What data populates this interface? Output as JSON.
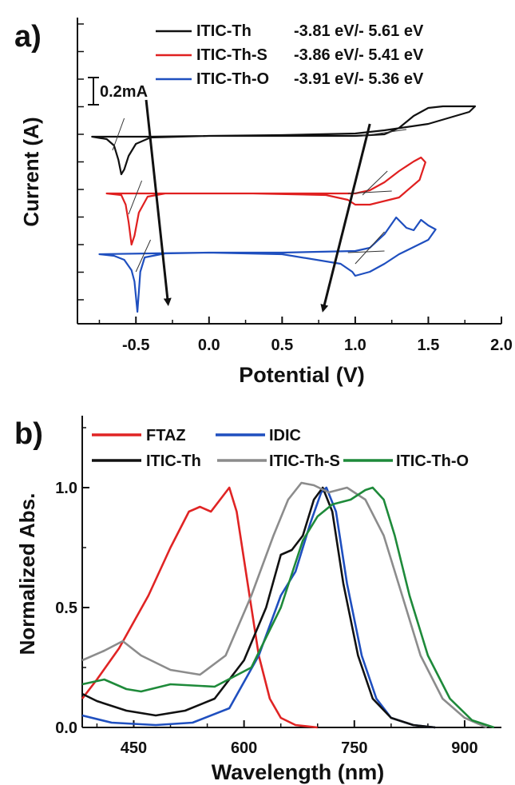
{
  "panels": {
    "a": {
      "letter": "a)"
    },
    "b": {
      "letter": "b)"
    }
  },
  "chart_data": [
    {
      "id": "a",
      "type": "line",
      "xlabel": "Potential (V)",
      "ylabel": "Current (A)",
      "xlim": [
        -0.9,
        2.0
      ],
      "xticks": [
        -0.5,
        0.0,
        0.5,
        1.0,
        1.5,
        2.0
      ],
      "xtick_labels": [
        "-0.5",
        "0.0",
        "0.5",
        "1.0",
        "1.5",
        "2.0"
      ],
      "y_tick_labels_shown": false,
      "scale_bar": {
        "label": "0.2mA",
        "value_mA": 0.2
      },
      "legend_position": "top-right",
      "series": [
        {
          "name": "ITIC-Th",
          "values_text": "-3.81 eV/- 5.61 eV",
          "color": "#111111",
          "loop": [
            [
              -0.8,
              171
            ],
            [
              -0.7,
              174
            ],
            [
              -0.65,
              182
            ],
            [
              -0.62,
              200
            ],
            [
              -0.6,
              218
            ],
            [
              -0.58,
              212
            ],
            [
              -0.55,
              195
            ],
            [
              -0.5,
              180
            ],
            [
              -0.4,
              172
            ],
            [
              0.0,
              170
            ],
            [
              0.5,
              170
            ],
            [
              1.0,
              170
            ],
            [
              1.2,
              168
            ],
            [
              1.3,
              160
            ],
            [
              1.4,
              145
            ],
            [
              1.5,
              135
            ],
            [
              1.6,
              133
            ],
            [
              1.7,
              133
            ],
            [
              1.82,
              133
            ],
            [
              1.78,
              140
            ],
            [
              1.5,
              155
            ],
            [
              1.2,
              163
            ],
            [
              1.0,
              167
            ],
            [
              0.5,
              169
            ],
            [
              0.0,
              170
            ],
            [
              -0.4,
              171
            ],
            [
              -0.8,
              171
            ]
          ],
          "onset_tangents": [
            [
              [
                -0.66,
                188
              ],
              [
                -0.58,
                148
              ]
            ],
            [
              [
                1.05,
                170
              ],
              [
                1.35,
                162
              ]
            ]
          ]
        },
        {
          "name": "ITIC-Th-S",
          "values_text": "-3.86 eV/- 5.41 eV",
          "color": "#e02020",
          "loop": [
            [
              -0.7,
              242
            ],
            [
              -0.6,
              244
            ],
            [
              -0.57,
              256
            ],
            [
              -0.55,
              278
            ],
            [
              -0.53,
              306
            ],
            [
              -0.51,
              295
            ],
            [
              -0.48,
              266
            ],
            [
              -0.42,
              246
            ],
            [
              -0.3,
              242
            ],
            [
              0.0,
              242
            ],
            [
              0.5,
              242
            ],
            [
              1.0,
              242
            ],
            [
              1.1,
              238
            ],
            [
              1.2,
              228
            ],
            [
              1.3,
              214
            ],
            [
              1.4,
              202
            ],
            [
              1.45,
              197
            ],
            [
              1.48,
              203
            ],
            [
              1.44,
              225
            ],
            [
              1.3,
              247
            ],
            [
              1.1,
              256
            ],
            [
              1.0,
              256
            ],
            [
              0.95,
              250
            ],
            [
              0.8,
              244
            ],
            [
              0.3,
              242
            ],
            [
              -0.3,
              242
            ],
            [
              -0.7,
              242
            ]
          ],
          "onset_tangents": [
            [
              [
                -0.55,
                268
              ],
              [
                -0.46,
                226
              ]
            ],
            [
              [
                1.05,
                244
              ],
              [
                1.22,
                214
              ]
            ],
            [
              [
                0.95,
                242
              ],
              [
                1.25,
                239
              ]
            ]
          ]
        },
        {
          "name": "ITIC-Th-O",
          "values_text": "-3.91 eV/- 5.36 eV",
          "color": "#1f4fbf",
          "loop": [
            [
              -0.75,
              318
            ],
            [
              -0.65,
              320
            ],
            [
              -0.58,
              325
            ],
            [
              -0.53,
              338
            ],
            [
              -0.51,
              352
            ],
            [
              -0.49,
              390
            ],
            [
              -0.47,
              340
            ],
            [
              -0.44,
              322
            ],
            [
              -0.3,
              317
            ],
            [
              0.0,
              316
            ],
            [
              0.5,
              316
            ],
            [
              1.0,
              314
            ],
            [
              1.1,
              310
            ],
            [
              1.2,
              293
            ],
            [
              1.28,
              272
            ],
            [
              1.35,
              285
            ],
            [
              1.4,
              288
            ],
            [
              1.45,
              275
            ],
            [
              1.5,
              282
            ],
            [
              1.55,
              287
            ],
            [
              1.5,
              300
            ],
            [
              1.3,
              318
            ],
            [
              1.2,
              330
            ],
            [
              1.1,
              340
            ],
            [
              1.0,
              345
            ],
            [
              0.98,
              340
            ],
            [
              0.9,
              330
            ],
            [
              0.5,
              318
            ],
            [
              0.0,
              316
            ],
            [
              -0.4,
              317
            ],
            [
              -0.75,
              318
            ]
          ],
          "onset_tangents": [
            [
              [
                -0.5,
                340
              ],
              [
                -0.4,
                300
              ]
            ],
            [
              [
                1.0,
                330
              ],
              [
                1.2,
                290
              ]
            ],
            [
              [
                0.95,
                316
              ],
              [
                1.2,
                314
              ]
            ]
          ]
        }
      ],
      "arrows": [
        [
          [
            -0.43,
            125
          ],
          [
            -0.28,
            380
          ]
        ],
        [
          [
            1.1,
            155
          ],
          [
            0.78,
            388
          ]
        ]
      ]
    },
    {
      "id": "b",
      "type": "line",
      "xlabel": "Wavelength (nm)",
      "ylabel": "Normalized Abs.",
      "xlim": [
        380,
        950
      ],
      "ylim": [
        0.0,
        1.3
      ],
      "xticks": [
        450,
        600,
        750,
        900
      ],
      "xtick_labels": [
        "450",
        "600",
        "750",
        "900"
      ],
      "yticks": [
        0.0,
        0.5,
        1.0
      ],
      "ytick_labels": [
        "0.0",
        "0.5",
        "1.0"
      ],
      "legend_position": "top",
      "series": [
        {
          "name": "FTAZ",
          "color": "#e02424",
          "points": [
            [
              380,
              0.12
            ],
            [
              400,
              0.2
            ],
            [
              430,
              0.33
            ],
            [
              470,
              0.55
            ],
            [
              500,
              0.75
            ],
            [
              525,
              0.9
            ],
            [
              540,
              0.92
            ],
            [
              555,
              0.9
            ],
            [
              570,
              0.96
            ],
            [
              580,
              1.0
            ],
            [
              590,
              0.9
            ],
            [
              605,
              0.6
            ],
            [
              620,
              0.3
            ],
            [
              635,
              0.12
            ],
            [
              650,
              0.04
            ],
            [
              670,
              0.01
            ],
            [
              700,
              0.0
            ]
          ]
        },
        {
          "name": "IDIC",
          "color": "#1f4fbf",
          "points": [
            [
              380,
              0.05
            ],
            [
              420,
              0.02
            ],
            [
              480,
              0.01
            ],
            [
              530,
              0.02
            ],
            [
              580,
              0.08
            ],
            [
              620,
              0.3
            ],
            [
              650,
              0.55
            ],
            [
              670,
              0.65
            ],
            [
              690,
              0.85
            ],
            [
              705,
              0.98
            ],
            [
              712,
              1.0
            ],
            [
              725,
              0.9
            ],
            [
              740,
              0.6
            ],
            [
              760,
              0.3
            ],
            [
              780,
              0.12
            ],
            [
              800,
              0.04
            ],
            [
              830,
              0.01
            ],
            [
              860,
              0.0
            ]
          ]
        },
        {
          "name": "ITIC-Th",
          "color": "#111111",
          "points": [
            [
              380,
              0.14
            ],
            [
              400,
              0.11
            ],
            [
              440,
              0.07
            ],
            [
              480,
              0.05
            ],
            [
              520,
              0.07
            ],
            [
              560,
              0.12
            ],
            [
              600,
              0.28
            ],
            [
              630,
              0.5
            ],
            [
              650,
              0.72
            ],
            [
              665,
              0.74
            ],
            [
              680,
              0.8
            ],
            [
              695,
              0.95
            ],
            [
              707,
              1.0
            ],
            [
              720,
              0.9
            ],
            [
              735,
              0.6
            ],
            [
              755,
              0.3
            ],
            [
              775,
              0.12
            ],
            [
              800,
              0.04
            ],
            [
              830,
              0.01
            ],
            [
              860,
              0.0
            ]
          ]
        },
        {
          "name": "ITIC-Th-S",
          "color": "#8c8c8c",
          "points": [
            [
              380,
              0.28
            ],
            [
              410,
              0.32
            ],
            [
              435,
              0.36
            ],
            [
              460,
              0.3
            ],
            [
              500,
              0.24
            ],
            [
              540,
              0.22
            ],
            [
              575,
              0.3
            ],
            [
              610,
              0.55
            ],
            [
              640,
              0.8
            ],
            [
              660,
              0.95
            ],
            [
              678,
              1.02
            ],
            [
              695,
              1.01
            ],
            [
              715,
              0.98
            ],
            [
              740,
              1.0
            ],
            [
              765,
              0.95
            ],
            [
              790,
              0.8
            ],
            [
              815,
              0.55
            ],
            [
              840,
              0.3
            ],
            [
              870,
              0.12
            ],
            [
              900,
              0.04
            ],
            [
              930,
              0.0
            ]
          ]
        },
        {
          "name": "ITIC-Th-O",
          "color": "#1e8a3a",
          "points": [
            [
              380,
              0.18
            ],
            [
              410,
              0.2
            ],
            [
              440,
              0.16
            ],
            [
              460,
              0.15
            ],
            [
              500,
              0.18
            ],
            [
              560,
              0.17
            ],
            [
              610,
              0.25
            ],
            [
              650,
              0.5
            ],
            [
              680,
              0.78
            ],
            [
              700,
              0.88
            ],
            [
              720,
              0.93
            ],
            [
              745,
              0.95
            ],
            [
              765,
              0.99
            ],
            [
              775,
              1.0
            ],
            [
              790,
              0.95
            ],
            [
              805,
              0.8
            ],
            [
              825,
              0.55
            ],
            [
              850,
              0.3
            ],
            [
              880,
              0.12
            ],
            [
              910,
              0.03
            ],
            [
              940,
              0.0
            ]
          ]
        }
      ]
    }
  ]
}
